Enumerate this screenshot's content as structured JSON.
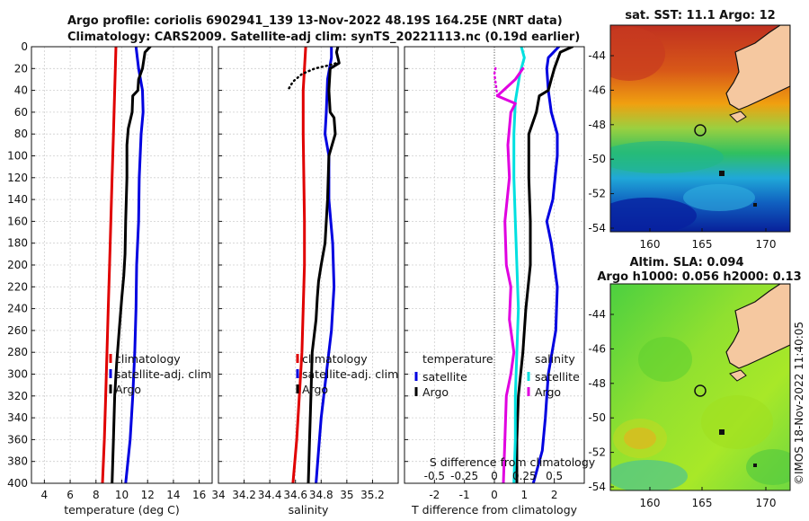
{
  "chart_data": {
    "type": "line",
    "figure_title_line1": "Argo profile: coriolis 6902941_139 13-Nov-2022 48.19S 164.25E (NRT data)",
    "figure_title_line2": "Climatology: CARS2009. Satellite-adj clim: synTS_20221113.nc (0.19d earlier)",
    "y_axis": {
      "label": "",
      "range": [
        400,
        0
      ],
      "ticks": [
        0,
        20,
        40,
        60,
        80,
        100,
        120,
        140,
        160,
        180,
        200,
        220,
        240,
        260,
        280,
        300,
        320,
        340,
        360,
        380,
        400
      ]
    },
    "panels": [
      {
        "id": "temperature",
        "xlabel": "temperature (deg C)",
        "xlim": [
          3,
          17
        ],
        "xticks": [
          4,
          6,
          8,
          10,
          12,
          14,
          16
        ],
        "legend": [
          "climatology",
          "satellite-adj. clim",
          "Argo"
        ],
        "series": [
          {
            "name": "climatology",
            "color": "#e00000",
            "dotted": false,
            "points": [
              [
                9.55,
                0
              ],
              [
                9.45,
                40
              ],
              [
                9.35,
                80
              ],
              [
                9.25,
                120
              ],
              [
                9.15,
                160
              ],
              [
                9.05,
                200
              ],
              [
                8.95,
                240
              ],
              [
                8.85,
                280
              ],
              [
                8.75,
                320
              ],
              [
                8.65,
                360
              ],
              [
                8.5,
                400
              ]
            ]
          },
          {
            "name": "satellite-adj. clim",
            "color": "#0000e0",
            "dotted": false,
            "points": [
              [
                11.1,
                0
              ],
              [
                11.3,
                20
              ],
              [
                11.6,
                40
              ],
              [
                11.65,
                60
              ],
              [
                11.5,
                80
              ],
              [
                11.35,
                120
              ],
              [
                11.3,
                160
              ],
              [
                11.15,
                200
              ],
              [
                11.1,
                240
              ],
              [
                11.0,
                280
              ],
              [
                10.85,
                320
              ],
              [
                10.65,
                360
              ],
              [
                10.3,
                400
              ]
            ]
          },
          {
            "name": "Argo",
            "color": "#000000",
            "dotted": false,
            "points": [
              [
                12.2,
                0
              ],
              [
                11.8,
                5
              ],
              [
                11.6,
                20
              ],
              [
                11.3,
                30
              ],
              [
                11.25,
                40
              ],
              [
                10.85,
                45
              ],
              [
                10.8,
                60
              ],
              [
                10.5,
                75
              ],
              [
                10.4,
                90
              ],
              [
                10.4,
                120
              ],
              [
                10.3,
                160
              ],
              [
                10.25,
                190
              ],
              [
                10.15,
                210
              ],
              [
                10.0,
                230
              ],
              [
                9.8,
                260
              ],
              [
                9.6,
                290
              ],
              [
                9.45,
                320
              ],
              [
                9.35,
                360
              ],
              [
                9.25,
                400
              ]
            ]
          }
        ]
      },
      {
        "id": "salinity",
        "xlabel": "salinity",
        "xlim": [
          34.0,
          35.4
        ],
        "xticks": [
          34,
          34.2,
          34.4,
          34.6,
          34.8,
          35,
          35.2
        ],
        "xticklabels": [
          "34",
          "34.2",
          "34.4",
          "34.6",
          "34.8",
          "35",
          "35.2"
        ],
        "legend": [
          "climatology",
          "satellite-adj. clim",
          "Argo"
        ],
        "series": [
          {
            "name": "climatology",
            "color": "#e00000",
            "dotted": false,
            "points": [
              [
                34.68,
                0
              ],
              [
                34.67,
                20
              ],
              [
                34.66,
                40
              ],
              [
                34.66,
                80
              ],
              [
                34.665,
                120
              ],
              [
                34.67,
                160
              ],
              [
                34.67,
                200
              ],
              [
                34.66,
                240
              ],
              [
                34.65,
                280
              ],
              [
                34.63,
                320
              ],
              [
                34.61,
                360
              ],
              [
                34.58,
                400
              ]
            ]
          },
          {
            "name": "satellite-adj. clim",
            "color": "#0000e0",
            "dotted": false,
            "points": [
              [
                34.88,
                0
              ],
              [
                34.88,
                10
              ],
              [
                34.85,
                30
              ],
              [
                34.84,
                60
              ],
              [
                34.83,
                80
              ],
              [
                34.86,
                100
              ],
              [
                34.86,
                140
              ],
              [
                34.89,
                180
              ],
              [
                34.9,
                220
              ],
              [
                34.88,
                260
              ],
              [
                34.84,
                300
              ],
              [
                34.8,
                340
              ],
              [
                34.78,
                370
              ],
              [
                34.76,
                400
              ]
            ]
          },
          {
            "name": "Argo",
            "color": "#000000",
            "dotted": false,
            "points": [
              [
                34.93,
                0
              ],
              [
                34.92,
                5
              ],
              [
                34.94,
                15
              ],
              [
                34.87,
                20
              ],
              [
                34.86,
                40
              ],
              [
                34.87,
                60
              ],
              [
                34.9,
                65
              ],
              [
                34.91,
                80
              ],
              [
                34.86,
                100
              ],
              [
                34.85,
                140
              ],
              [
                34.83,
                180
              ],
              [
                34.8,
                200
              ],
              [
                34.78,
                215
              ],
              [
                34.77,
                230
              ],
              [
                34.76,
                250
              ],
              [
                34.73,
                280
              ],
              [
                34.72,
                320
              ],
              [
                34.71,
                360
              ],
              [
                34.7,
                400
              ]
            ]
          },
          {
            "name": "Argo upper (dotted)",
            "color": "#000000",
            "dotted": true,
            "points": [
              [
                34.55,
                38
              ],
              [
                34.58,
                32
              ],
              [
                34.65,
                25
              ],
              [
                34.75,
                20
              ],
              [
                34.86,
                17
              ],
              [
                34.92,
                15
              ]
            ]
          }
        ]
      },
      {
        "id": "difference",
        "xlabel": "T difference from climatology",
        "xlabel_top": "S difference from climatology",
        "xlim": [
          -3,
          3
        ],
        "xticks": [
          -2,
          -1,
          0,
          1,
          2
        ],
        "xticks_top": [
          -0.5,
          -0.25,
          0,
          0.25,
          0.5
        ],
        "xticklabels_top": [
          "-0.5",
          "-0.25",
          "0",
          "0.25",
          "0.5"
        ],
        "legend_left_title": "temperature",
        "legend_left": [
          "satellite",
          "Argo"
        ],
        "legend_right_title": "salinity",
        "legend_right": [
          "satellite",
          "Argo"
        ],
        "series": [
          {
            "name": "T satellite",
            "color": "#0000e0",
            "dotted": false,
            "points": [
              [
                2.15,
                0
              ],
              [
                1.8,
                10
              ],
              [
                1.75,
                20
              ],
              [
                1.8,
                40
              ],
              [
                1.9,
                60
              ],
              [
                2.1,
                80
              ],
              [
                2.1,
                100
              ],
              [
                1.95,
                140
              ],
              [
                1.75,
                160
              ],
              [
                1.9,
                180
              ],
              [
                2.0,
                200
              ],
              [
                2.1,
                220
              ],
              [
                2.05,
                260
              ],
              [
                1.8,
                300
              ],
              [
                1.7,
                340
              ],
              [
                1.6,
                370
              ],
              [
                1.3,
                400
              ]
            ]
          },
          {
            "name": "T Argo",
            "color": "#000000",
            "dotted": false,
            "points": [
              [
                2.6,
                0
              ],
              [
                2.2,
                5
              ],
              [
                2.0,
                20
              ],
              [
                1.9,
                30
              ],
              [
                1.8,
                40
              ],
              [
                1.5,
                45
              ],
              [
                1.4,
                60
              ],
              [
                1.15,
                80
              ],
              [
                1.15,
                120
              ],
              [
                1.2,
                160
              ],
              [
                1.2,
                200
              ],
              [
                1.05,
                240
              ],
              [
                0.95,
                280
              ],
              [
                0.8,
                320
              ],
              [
                0.75,
                360
              ],
              [
                0.75,
                400
              ]
            ]
          },
          {
            "name": "S satellite",
            "color": "#00e0e0",
            "dotted": false,
            "points": [
              [
                0.9,
                0
              ],
              [
                1.0,
                10
              ],
              [
                0.85,
                25
              ],
              [
                0.7,
                50
              ],
              [
                0.65,
                80
              ],
              [
                0.65,
                120
              ],
              [
                0.7,
                160
              ],
              [
                0.75,
                200
              ],
              [
                0.8,
                240
              ],
              [
                0.75,
                280
              ],
              [
                0.7,
                320
              ],
              [
                0.7,
                360
              ],
              [
                0.65,
                400
              ]
            ]
          },
          {
            "name": "S Argo",
            "color": "#e000e0",
            "dotted": false,
            "points": [
              [
                0.95,
                20
              ],
              [
                0.7,
                30
              ],
              [
                0.3,
                40
              ],
              [
                0.1,
                45
              ],
              [
                0.7,
                52
              ],
              [
                0.55,
                60
              ],
              [
                0.45,
                90
              ],
              [
                0.5,
                120
              ],
              [
                0.35,
                160
              ],
              [
                0.4,
                200
              ],
              [
                0.55,
                220
              ],
              [
                0.5,
                250
              ],
              [
                0.65,
                280
              ],
              [
                0.55,
                300
              ],
              [
                0.4,
                320
              ],
              [
                0.35,
                360
              ],
              [
                0.3,
                400
              ]
            ]
          },
          {
            "name": "S Argo upper (dotted)",
            "color": "#e000e0",
            "dotted": true,
            "points": [
              [
                0.1,
                45
              ],
              [
                0.05,
                35
              ],
              [
                0.0,
                25
              ],
              [
                0.05,
                18
              ]
            ]
          }
        ]
      }
    ],
    "maps": [
      {
        "id": "sst-map",
        "title": "sat. SST: 11.1 Argo: 12",
        "lon_ticks": [
          "160",
          "165",
          "170"
        ],
        "lat_ticks": [
          "-44",
          "-46",
          "-48",
          "-50",
          "-52",
          "-54"
        ],
        "argo_position": [
          164.25,
          -48.19
        ]
      },
      {
        "id": "sla-map",
        "title": "Altim. SLA: 0.094",
        "subtitle": "Argo h1000: 0.056 h2000: 0.13",
        "lon_ticks": [
          "160",
          "165",
          "170"
        ],
        "lat_ticks": [
          "-44",
          "-46",
          "-48",
          "-50",
          "-52",
          "-54"
        ],
        "argo_position": [
          164.25,
          -48.19
        ]
      }
    ],
    "colors": {
      "climatology": "#e00000",
      "satellite": "#0000e0",
      "argo": "#000000",
      "s_satellite": "#00e0e0",
      "s_argo": "#e000e0",
      "land": "#f5c8a0"
    },
    "credit": "©IMOS 18-Nov-2022 11:40:05"
  }
}
